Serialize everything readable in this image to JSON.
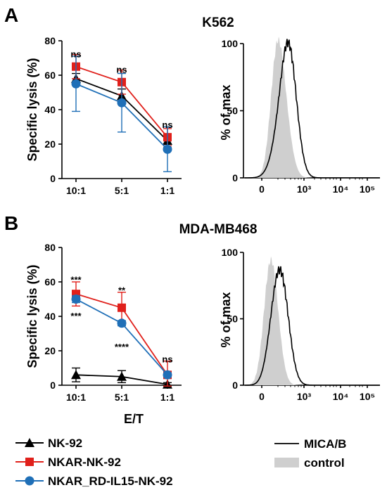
{
  "panels": [
    {
      "letter": "A",
      "title": "K562",
      "flow_ylabel": "% of max",
      "flow_xticks": [
        "0",
        "10³",
        "10⁴",
        "10⁵"
      ],
      "flow_yticks": [
        "0",
        "50",
        "100"
      ]
    },
    {
      "letter": "B",
      "title": "MDA-MB468",
      "flow_ylabel": "% of max",
      "flow_xticks": [
        "0",
        "10³",
        "10⁴",
        "10⁵"
      ],
      "flow_yticks": [
        "0",
        "50",
        "100"
      ]
    }
  ],
  "legend": {
    "series": [
      {
        "label": "NK-92",
        "color": "#000000",
        "marker": "triangle"
      },
      {
        "label": "NKAR-NK-92",
        "color": "#e0201b",
        "marker": "square"
      },
      {
        "label": "NKAR_RD-IL15-NK-92",
        "color": "#1f6fb7",
        "marker": "circle"
      }
    ],
    "flow": [
      {
        "label": "MICA/B",
        "kind": "line"
      },
      {
        "label": "control",
        "kind": "filled"
      }
    ]
  },
  "chart_data": [
    {
      "type": "line",
      "title": "K562",
      "xlabel": "",
      "ylabel": "Specific lysis  (%)",
      "categories": [
        "10:1",
        "5:1",
        "1:1"
      ],
      "ylim": [
        0,
        80
      ],
      "yticks": [
        "0",
        "20",
        "40",
        "60",
        "80"
      ],
      "series": [
        {
          "name": "NK-92",
          "color": "#000000",
          "marker": "triangle",
          "values": [
            58,
            48,
            22
          ],
          "errors": [
            3,
            4,
            4
          ]
        },
        {
          "name": "NKAR-NK-92",
          "color": "#e0201b",
          "marker": "square",
          "values": [
            65,
            56,
            24
          ],
          "errors": [
            7,
            7,
            5
          ]
        },
        {
          "name": "NKAR_RD-IL15-NK-92",
          "color": "#1f6fb7",
          "marker": "circle",
          "values": [
            55,
            44,
            17
          ],
          "errors": [
            16,
            17,
            13
          ]
        }
      ],
      "annotations": [
        {
          "category": "10:1",
          "y": 72,
          "text": "ns"
        },
        {
          "category": "5:1",
          "y": 63,
          "text": "ns"
        },
        {
          "category": "1:1",
          "y": 31,
          "text": "ns"
        }
      ]
    },
    {
      "type": "line",
      "title": "MDA-MB468",
      "xlabel": "E/T",
      "ylabel": "Specific lysis  (%)",
      "categories": [
        "10:1",
        "5:1",
        "1:1"
      ],
      "ylim": [
        0,
        80
      ],
      "yticks": [
        "0",
        "20",
        "40",
        "60",
        "80"
      ],
      "series": [
        {
          "name": "NK-92",
          "color": "#000000",
          "marker": "triangle",
          "values": [
            6,
            5,
            0.5
          ],
          "errors": [
            4,
            3.5,
            1
          ]
        },
        {
          "name": "NKAR-NK-92",
          "color": "#e0201b",
          "marker": "square",
          "values": [
            53,
            45,
            6
          ],
          "errors": [
            7,
            9,
            8
          ]
        },
        {
          "name": "NKAR_RD-IL15-NK-92",
          "color": "#1f6fb7",
          "marker": "circle",
          "values": [
            50,
            36,
            6
          ],
          "errors": [
            2,
            1.5,
            1
          ]
        }
      ],
      "annotations": [
        {
          "category": "10:1",
          "y": 61,
          "text": "***"
        },
        {
          "category": "10:1",
          "y": 40,
          "text": "***"
        },
        {
          "category": "5:1",
          "y": 55,
          "text": "**"
        },
        {
          "category": "5:1",
          "y": 22,
          "text": "****"
        },
        {
          "category": "1:1",
          "y": 15,
          "text": "ns"
        }
      ]
    }
  ]
}
